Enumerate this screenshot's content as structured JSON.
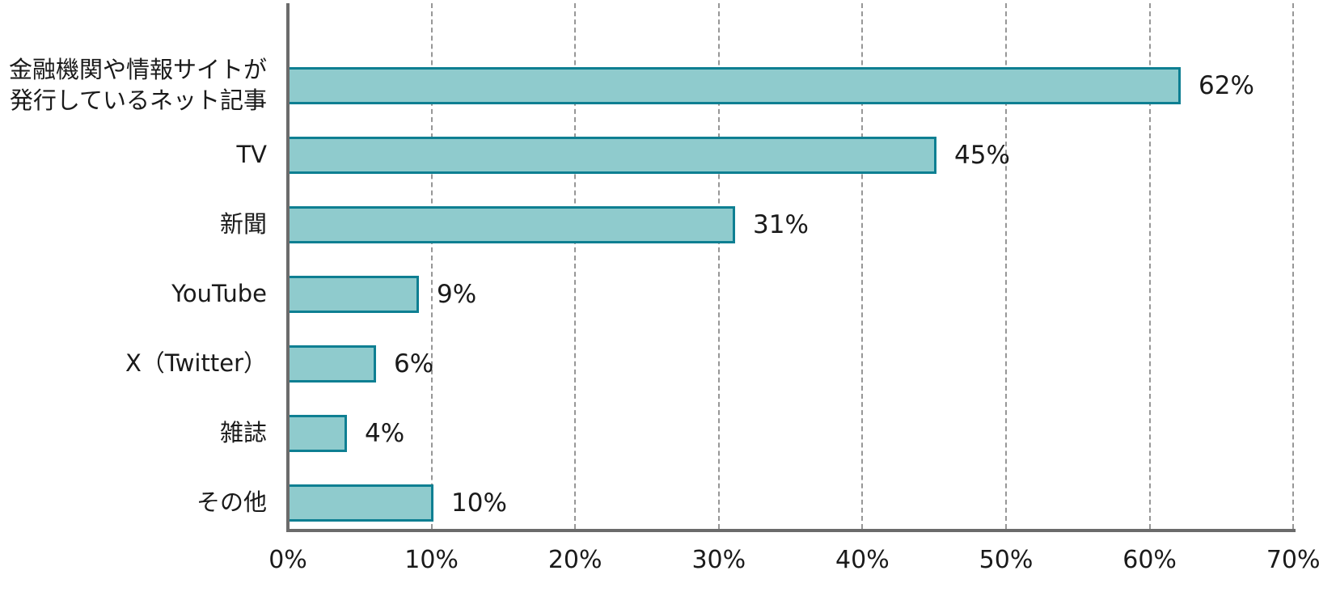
{
  "chart_data": {
    "type": "bar",
    "orientation": "horizontal",
    "title": "",
    "xlabel": "",
    "ylabel": "",
    "categories": [
      "金融機関や情報サイトが\n発行しているネット記事",
      "TV",
      "新聞",
      "YouTube",
      "X（Twitter）",
      "雑誌",
      "その他"
    ],
    "values": [
      62,
      45,
      31,
      9,
      6,
      4,
      10
    ],
    "value_labels": [
      "62%",
      "45%",
      "31%",
      "9%",
      "6%",
      "4%",
      "10%"
    ],
    "x_tick_labels": [
      "0%",
      "10%",
      "20%",
      "30%",
      "40%",
      "50%",
      "60%",
      "70%"
    ],
    "x_tick_values": [
      0,
      10,
      20,
      30,
      40,
      50,
      60,
      70
    ],
    "xlim": [
      0,
      70
    ],
    "grid": "vertical-dashed",
    "legend": "none",
    "colors": {
      "bar_fill": "#8FCBCD",
      "bar_border": "#0E7F92",
      "axis_line": "#6B6B6B",
      "gridline": "#979797",
      "text": "#1A1A1A"
    }
  }
}
